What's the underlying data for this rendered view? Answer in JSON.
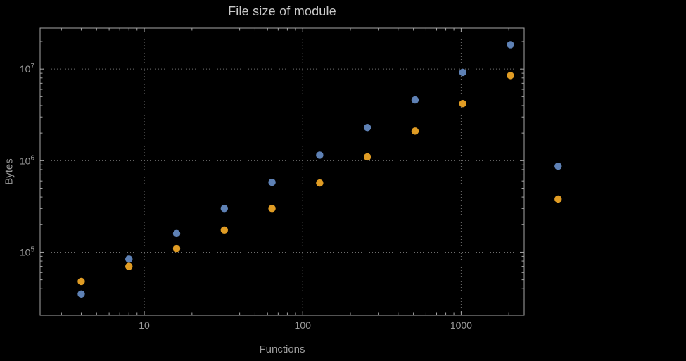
{
  "chart_data": {
    "type": "scatter",
    "title": "File size of module",
    "xlabel": "Functions",
    "ylabel": "Bytes",
    "x_scale": "log",
    "y_scale": "log",
    "grid": "dotted",
    "xlim": [
      2.2,
      2500
    ],
    "ylim": [
      20500,
      28000000
    ],
    "x": [
      4,
      8,
      16,
      32,
      64,
      128,
      256,
      512,
      1024,
      2048,
      4096
    ],
    "series": [
      {
        "name": "blue",
        "color": "#5e81b5",
        "values": [
          35000,
          84000,
          160000,
          300000,
          580000,
          1150000,
          2300000,
          4600000,
          9200000,
          18500000,
          870000
        ]
      },
      {
        "name": "orange",
        "color": "#e09c24",
        "values": [
          48000,
          70000,
          110000,
          175000,
          300000,
          570000,
          1100000,
          2100000,
          4200000,
          8500000,
          380000
        ]
      }
    ],
    "x_ticks": [
      {
        "value": 10,
        "label": "10"
      },
      {
        "value": 100,
        "label": "100"
      },
      {
        "value": 1000,
        "label": "1000"
      }
    ],
    "y_ticks": [
      {
        "value": 100000,
        "base": "10",
        "exp": "5"
      },
      {
        "value": 1000000,
        "base": "10",
        "exp": "6"
      },
      {
        "value": 10000000,
        "base": "10",
        "exp": "7"
      }
    ],
    "colors": {
      "background": "#000000",
      "frame": "#a6a6a6",
      "grid": "#6f6f6f",
      "text": "#9b9b9b",
      "title": "#c9c9c9"
    }
  }
}
